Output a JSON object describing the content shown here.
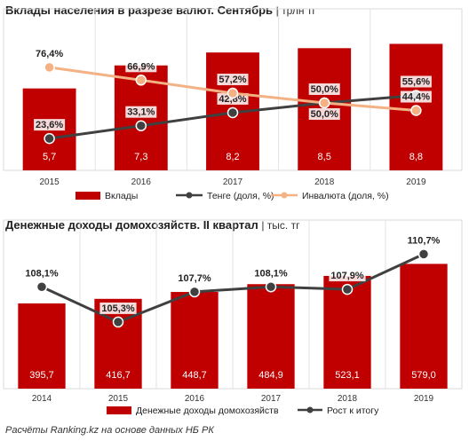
{
  "chart_data": [
    {
      "type": "bar",
      "title": "Вклады населения в разрезе валют. Сентябрь",
      "unit": "| трлн тг",
      "categories": [
        "2015",
        "2016",
        "2017",
        "2018",
        "2019"
      ],
      "series": [
        {
          "name": "Вклады",
          "type": "bar",
          "color": "#c00000",
          "values": [
            5.7,
            7.3,
            8.2,
            8.5,
            8.8
          ],
          "labels": [
            "5,7",
            "7,3",
            "8,2",
            "8,5",
            "8,8"
          ]
        },
        {
          "name": "Тенге (доля, %)",
          "type": "line",
          "color": "#404040",
          "values": [
            23.6,
            33.1,
            42.8,
            50.0,
            55.6
          ],
          "labels": [
            "23,6%",
            "33,1%",
            "42,8%",
            "50,0%",
            "55,6%"
          ]
        },
        {
          "name": "Инвалюта (доля, %)",
          "type": "line",
          "color": "#f4b183",
          "values": [
            76.4,
            66.9,
            57.2,
            50.0,
            44.4
          ],
          "labels": [
            "76,4%",
            "66,9%",
            "57,2%",
            "50,0%",
            "44,4%"
          ]
        }
      ],
      "grid": "vertical",
      "legend": "bottom"
    },
    {
      "type": "bar",
      "title": "Денежные доходы домохозяйств. II квартал",
      "unit": "| тыс. тг",
      "categories": [
        "2014",
        "2015",
        "2016",
        "2017",
        "2018",
        "2019"
      ],
      "series": [
        {
          "name": "Денежные доходы домохозяйств",
          "type": "bar",
          "color": "#c00000",
          "values": [
            395.7,
            416.7,
            448.7,
            484.9,
            523.1,
            579.0
          ],
          "labels": [
            "395,7",
            "416,7",
            "448,7",
            "484,9",
            "523,1",
            "579,0"
          ]
        },
        {
          "name": "Рост к итогу",
          "type": "line",
          "color": "#404040",
          "values": [
            108.1,
            105.3,
            107.7,
            108.1,
            107.9,
            110.7
          ],
          "labels": [
            "108,1%",
            "105,3%",
            "107,7%",
            "108,1%",
            "107,9%",
            "110,7%"
          ]
        }
      ],
      "grid": "vertical",
      "legend": "bottom"
    }
  ],
  "footer": "Расчёты Ranking.kz на основе данных НБ РК"
}
